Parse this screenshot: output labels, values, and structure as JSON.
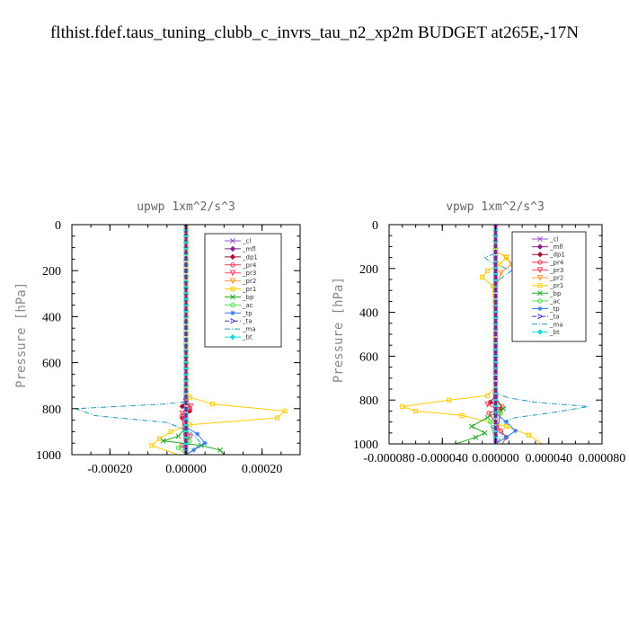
{
  "title": "flthist.fdef.taus_tuning_clubb_c_invrs_tau_n2_xp2m  BUDGET at265E,-17N",
  "chart_data": [
    {
      "type": "line",
      "title": "upwp   1xm^2/s^3",
      "ylabel": "Pressure [hPa]",
      "xlim": [
        -0.0003,
        0.0003
      ],
      "ylim": [
        1000,
        0
      ],
      "xticks": [
        -0.0002,
        0,
        0.0002
      ],
      "xtick_labels": [
        "-0.00020",
        "0.00000",
        "0.00020"
      ],
      "yticks": [
        0,
        200,
        400,
        600,
        800,
        1000
      ],
      "ytick_labels": [
        "0",
        "200",
        "400",
        "600",
        "800",
        "1000"
      ],
      "legend_position": "top-right",
      "series": [
        {
          "name": "_cl",
          "color": "#9955cc",
          "marker": "x",
          "dash": "",
          "points": [
            [
              0,
              0
            ],
            [
              0,
              1000
            ]
          ]
        },
        {
          "name": "_mfl",
          "color": "#8a2090",
          "marker": "diamond",
          "dash": "",
          "points": [
            [
              0,
              0
            ],
            [
              0,
              1000
            ]
          ]
        },
        {
          "name": "_dp1",
          "color": "#aa1030",
          "marker": "diamond",
          "dash": "",
          "points": [
            [
              0,
              0
            ],
            [
              0,
              760
            ],
            [
              -1e-05,
              790
            ],
            [
              1e-05,
              810
            ],
            [
              -1e-05,
              840
            ],
            [
              0,
              1000
            ]
          ]
        },
        {
          "name": "_pr4",
          "color": "#ee3355",
          "marker": "circle",
          "dash": "",
          "points": [
            [
              0,
              0
            ],
            [
              0,
              770
            ],
            [
              1e-05,
              800
            ],
            [
              -1e-05,
              830
            ],
            [
              1e-05,
              920
            ],
            [
              -1e-05,
              960
            ],
            [
              0,
              1000
            ]
          ]
        },
        {
          "name": "_pr3",
          "color": "#ff4466",
          "marker": "triangle",
          "dash": "",
          "points": [
            [
              0,
              0
            ],
            [
              0,
              760
            ],
            [
              1.2e-05,
              790
            ],
            [
              -1e-05,
              820
            ],
            [
              0,
              1000
            ]
          ]
        },
        {
          "name": "_pr2",
          "color": "#ff9933",
          "marker": "triangle",
          "dash": "",
          "points": [
            [
              0,
              0
            ],
            [
              0,
              1000
            ]
          ]
        },
        {
          "name": "_pr1",
          "color": "#ffcc00",
          "marker": "square",
          "dash": "",
          "points": [
            [
              0,
              0
            ],
            [
              0,
              720
            ],
            [
              1e-05,
              750
            ],
            [
              7e-05,
              780
            ],
            [
              0.00026,
              810
            ],
            [
              0.00024,
              840
            ],
            [
              1e-05,
              870
            ],
            [
              -4e-05,
              900
            ],
            [
              -7e-05,
              930
            ],
            [
              -9e-05,
              960
            ],
            [
              -2e-05,
              1000
            ]
          ]
        },
        {
          "name": "_bp",
          "color": "#22aa22",
          "marker": "x",
          "dash": "",
          "points": [
            [
              0,
              0
            ],
            [
              0,
              880
            ],
            [
              -2e-05,
              920
            ],
            [
              -6e-05,
              940
            ],
            [
              4e-05,
              960
            ],
            [
              9e-05,
              980
            ],
            [
              0.0001,
              1000
            ]
          ]
        },
        {
          "name": "_ac",
          "color": "#55dd55",
          "marker": "circle",
          "dash": "",
          "points": [
            [
              0,
              0
            ],
            [
              0,
              900
            ],
            [
              1e-05,
              940
            ],
            [
              -2e-05,
              970
            ],
            [
              0,
              1000
            ]
          ]
        },
        {
          "name": "_tp",
          "color": "#3377ee",
          "marker": "star",
          "dash": "",
          "points": [
            [
              0,
              0
            ],
            [
              0,
              880
            ],
            [
              3e-05,
              910
            ],
            [
              5e-05,
              950
            ],
            [
              2e-05,
              980
            ],
            [
              0,
              1000
            ]
          ]
        },
        {
          "name": "_ta",
          "color": "#4433cc",
          "marker": "arrow",
          "dash": "5,2,1,2",
          "points": [
            [
              0,
              0
            ],
            [
              0,
              1000
            ]
          ]
        },
        {
          "name": "_ma",
          "color": "#2299bb",
          "marker": "none",
          "dash": "6,2,1,2",
          "points": [
            [
              0,
              0
            ],
            [
              0,
              770
            ],
            [
              -6e-05,
              780
            ],
            [
              -0.00029,
              800
            ],
            [
              -0.00024,
              830
            ],
            [
              -5e-05,
              860
            ],
            [
              1e-05,
              900
            ],
            [
              4e-05,
              950
            ],
            [
              2e-05,
              980
            ],
            [
              0,
              1000
            ]
          ]
        },
        {
          "name": "_bt",
          "color": "#11dddd",
          "marker": "diamond",
          "dash": "",
          "points": [
            [
              0,
              0
            ],
            [
              0,
              1000
            ]
          ]
        }
      ]
    },
    {
      "type": "line",
      "title": "vpwp   1xm^2/s^3",
      "ylabel": "Pressure [hPa]",
      "xlim": [
        -8e-05,
        8e-05
      ],
      "ylim": [
        1000,
        0
      ],
      "xticks": [
        -8e-05,
        -4e-05,
        0,
        4e-05,
        8e-05
      ],
      "xtick_labels": [
        "-0.000080",
        "-0.000040",
        "0.000000",
        "0.000040",
        "0.000080"
      ],
      "yticks": [
        0,
        200,
        400,
        600,
        800,
        1000
      ],
      "ytick_labels": [
        "0",
        "200",
        "400",
        "600",
        "800",
        "1000"
      ],
      "legend_position": "top-right",
      "series": [
        {
          "name": "_cl",
          "color": "#9955cc",
          "marker": "x",
          "dash": "",
          "points": [
            [
              0,
              0
            ],
            [
              0,
              1000
            ]
          ]
        },
        {
          "name": "_mfl",
          "color": "#8a2090",
          "marker": "diamond",
          "dash": "",
          "points": [
            [
              0,
              0
            ],
            [
              0,
              1000
            ]
          ]
        },
        {
          "name": "_dp1",
          "color": "#aa1030",
          "marker": "diamond",
          "dash": "",
          "points": [
            [
              0,
              0
            ],
            [
              0,
              780
            ],
            [
              -4e-06,
              810
            ],
            [
              4e-06,
              840
            ],
            [
              0,
              1000
            ]
          ]
        },
        {
          "name": "_pr4",
          "color": "#ee3355",
          "marker": "circle",
          "dash": "",
          "points": [
            [
              0,
              0
            ],
            [
              0,
              790
            ],
            [
              5e-06,
              830
            ],
            [
              -5e-06,
              860
            ],
            [
              4e-06,
              940
            ],
            [
              8e-06,
              970
            ],
            [
              5e-06,
              1000
            ]
          ]
        },
        {
          "name": "_pr3",
          "color": "#ff4466",
          "marker": "triangle",
          "dash": "",
          "points": [
            [
              0,
              0
            ],
            [
              0,
              780
            ],
            [
              -6e-06,
              820
            ],
            [
              4e-06,
              850
            ],
            [
              0,
              1000
            ]
          ]
        },
        {
          "name": "_pr2",
          "color": "#ff9933",
          "marker": "triangle",
          "dash": "",
          "points": [
            [
              0,
              0
            ],
            [
              0,
              120
            ],
            [
              8e-06,
              150
            ],
            [
              1.2e-05,
              180
            ],
            [
              4e-06,
              220
            ],
            [
              0,
              300
            ],
            [
              0,
              1000
            ]
          ]
        },
        {
          "name": "_pr1",
          "color": "#ffcc00",
          "marker": "square",
          "dash": "",
          "points": [
            [
              0,
              0
            ],
            [
              0,
              120
            ],
            [
              8e-06,
              150
            ],
            [
              3e-06,
              180
            ],
            [
              -6e-06,
              210
            ],
            [
              -1e-05,
              240
            ],
            [
              -2e-06,
              280
            ],
            [
              0,
              740
            ],
            [
              -6e-06,
              780
            ],
            [
              -3.5e-05,
              800
            ],
            [
              -7e-05,
              830
            ],
            [
              -6e-05,
              850
            ],
            [
              -2.5e-05,
              870
            ],
            [
              8e-06,
              920
            ],
            [
              2.5e-05,
              960
            ],
            [
              3.5e-05,
              1000
            ]
          ]
        },
        {
          "name": "_bp",
          "color": "#22aa22",
          "marker": "x",
          "dash": "",
          "points": [
            [
              0,
              0
            ],
            [
              0,
              800
            ],
            [
              6e-06,
              840
            ],
            [
              -6e-06,
              880
            ],
            [
              -1.8e-05,
              920
            ],
            [
              -8e-06,
              950
            ],
            [
              -1.5e-05,
              970
            ],
            [
              -3e-05,
              1000
            ]
          ]
        },
        {
          "name": "_ac",
          "color": "#55dd55",
          "marker": "circle",
          "dash": "",
          "points": [
            [
              0,
              0
            ],
            [
              0,
              820
            ],
            [
              4e-06,
              860
            ],
            [
              -4e-06,
              900
            ],
            [
              0,
              1000
            ]
          ]
        },
        {
          "name": "_tp",
          "color": "#3377ee",
          "marker": "star",
          "dash": "",
          "points": [
            [
              0,
              0
            ],
            [
              0,
              860
            ],
            [
              8e-06,
              900
            ],
            [
              1.5e-05,
              940
            ],
            [
              8e-06,
              970
            ],
            [
              0,
              1000
            ]
          ]
        },
        {
          "name": "_ta",
          "color": "#4433cc",
          "marker": "arrow",
          "dash": "5,2,1,2",
          "points": [
            [
              0,
              0
            ],
            [
              0,
              1000
            ]
          ]
        },
        {
          "name": "_ma",
          "color": "#2299bb",
          "marker": "none",
          "dash": "6,2,1,2",
          "points": [
            [
              0,
              0
            ],
            [
              0,
              130
            ],
            [
              -8e-06,
              150
            ],
            [
              -4e-06,
              170
            ],
            [
              1.2e-05,
              210
            ],
            [
              3e-06,
              250
            ],
            [
              0,
              290
            ],
            [
              0,
              770
            ],
            [
              1e-05,
              790
            ],
            [
              3e-05,
              810
            ],
            [
              7e-05,
              830
            ],
            [
              4e-05,
              860
            ],
            [
              1.5e-05,
              880
            ],
            [
              -4e-06,
              920
            ],
            [
              6e-06,
              960
            ],
            [
              0,
              1000
            ]
          ]
        },
        {
          "name": "_bt",
          "color": "#11dddd",
          "marker": "diamond",
          "dash": "",
          "points": [
            [
              0,
              0
            ],
            [
              0,
              1000
            ]
          ]
        }
      ]
    }
  ]
}
